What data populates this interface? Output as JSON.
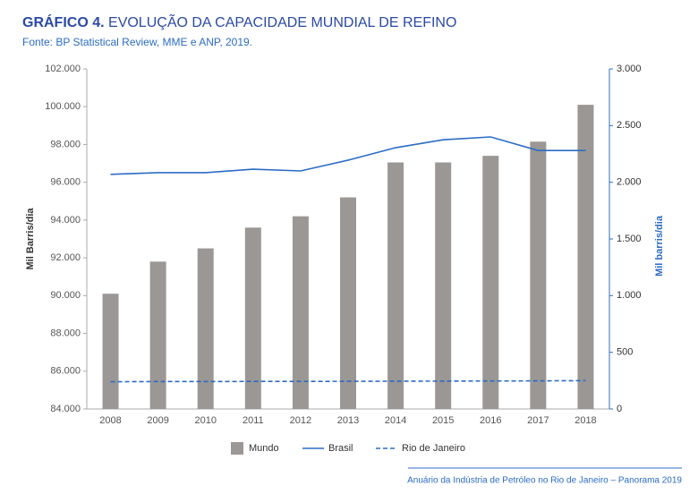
{
  "chart_data": {
    "type": "bar",
    "title_label": "GRÁFICO 4.",
    "title": "EVOLUÇÃO DA CAPACIDADE MUNDIAL DE REFINO",
    "subtitle": "Fonte: BP Statistical Review, MME e ANP, 2019.",
    "ylabel": "Mil Barris/dia",
    "y2label": "Mil barris/dia",
    "footer": "Anuário da Indústria de Petróleo no Rio de Janeiro – Panorama 2019",
    "categories": [
      "2008",
      "2009",
      "2010",
      "2011",
      "2012",
      "2013",
      "2014",
      "2015",
      "2016",
      "2017",
      "2018"
    ],
    "ylim": [
      84000,
      102000
    ],
    "yticks": [
      {
        "value": 84000,
        "label": "84.000"
      },
      {
        "value": 86000,
        "label": "86.000"
      },
      {
        "value": 88000,
        "label": "88.000"
      },
      {
        "value": 90000,
        "label": "90.000"
      },
      {
        "value": 92000,
        "label": "92.000"
      },
      {
        "value": 94000,
        "label": "94.000"
      },
      {
        "value": 96000,
        "label": "96.000"
      },
      {
        "value": 98000,
        "label": "98.000"
      },
      {
        "value": 100000,
        "label": "100.000"
      },
      {
        "value": 102000,
        "label": "102.000"
      }
    ],
    "y2lim": [
      0,
      3000
    ],
    "y2ticks": [
      0,
      500,
      {
        "value": 1000,
        "label": "1.000"
      },
      {
        "value": 1500,
        "label": "1.500"
      },
      {
        "value": 2000,
        "label": "2.000"
      },
      {
        "value": 2500,
        "label": "2.500"
      },
      {
        "value": 3000,
        "label": "3.000"
      }
    ],
    "series": [
      {
        "name": "Mundo",
        "type": "bar",
        "axis": "y",
        "color": "#9b9794",
        "values": [
          90100,
          91800,
          92500,
          93600,
          94200,
          95200,
          97050,
          97050,
          97400,
          98150,
          100100
        ]
      },
      {
        "name": "Brasil",
        "type": "line",
        "axis": "y2",
        "color": "#2b6cc4",
        "dashed": false,
        "values": [
          2070,
          2085,
          2085,
          2115,
          2100,
          2195,
          2305,
          2375,
          2400,
          2280,
          2280
        ]
      },
      {
        "name": "Rio de Janeiro",
        "type": "line",
        "axis": "y2",
        "color": "#2b6cc4",
        "dashed": true,
        "values": [
          240,
          242,
          242,
          243,
          243,
          244,
          245,
          246,
          247,
          248,
          250
        ]
      }
    ]
  }
}
